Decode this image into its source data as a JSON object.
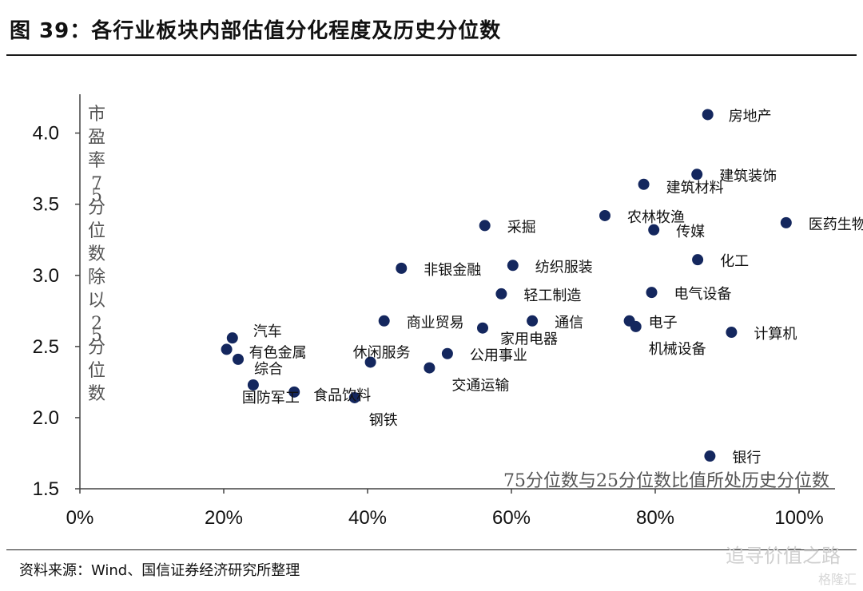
{
  "header": {
    "title": "图 39：各行业板块内部估值分化程度及历史分位数"
  },
  "footer": {
    "source": "资料来源：Wind、国信证券经济研究所整理",
    "watermark": "追寻价值之路",
    "watermark_small": "格隆汇"
  },
  "chart_data": {
    "type": "scatter",
    "xlabel": "75分位数与25分位数比值所处历史分位数",
    "ylabel": "市盈率75分位数除以25分位数",
    "xlim": [
      0,
      1.0
    ],
    "ylim": [
      1.5,
      4.2
    ],
    "xticks": [
      "0%",
      "20%",
      "40%",
      "60%",
      "80%",
      "100%"
    ],
    "yticks": [
      "1.5",
      "2.0",
      "2.5",
      "3.0",
      "3.5",
      "4.0"
    ],
    "marker_color": "#14275e",
    "points": [
      {
        "label": "房地产",
        "x": 0.873,
        "y": 4.13
      },
      {
        "label": "建筑装饰",
        "x": 0.858,
        "y": 3.71
      },
      {
        "label": "建筑材料",
        "x": 0.784,
        "y": 3.64
      },
      {
        "label": "采掘",
        "x": 0.563,
        "y": 3.35
      },
      {
        "label": "农林牧渔",
        "x": 0.73,
        "y": 3.42
      },
      {
        "label": "传媒",
        "x": 0.798,
        "y": 3.32
      },
      {
        "label": "医药生物",
        "x": 0.982,
        "y": 3.37
      },
      {
        "label": "非银金融",
        "x": 0.447,
        "y": 3.05
      },
      {
        "label": "纺织服装",
        "x": 0.602,
        "y": 3.07
      },
      {
        "label": "化工",
        "x": 0.859,
        "y": 3.11
      },
      {
        "label": "轻工制造",
        "x": 0.586,
        "y": 2.87
      },
      {
        "label": "电气设备",
        "x": 0.795,
        "y": 2.88
      },
      {
        "label": "商业贸易",
        "x": 0.423,
        "y": 2.68
      },
      {
        "label": "通信",
        "x": 0.629,
        "y": 2.68
      },
      {
        "label": "电子",
        "x": 0.764,
        "y": 2.68
      },
      {
        "label": "家用电器",
        "x": 0.56,
        "y": 2.63
      },
      {
        "label": "机械设备",
        "x": 0.773,
        "y": 2.64
      },
      {
        "label": "计算机",
        "x": 0.906,
        "y": 2.6
      },
      {
        "label": "汽车",
        "x": 0.212,
        "y": 2.56
      },
      {
        "label": "有色金属",
        "x": 0.204,
        "y": 2.48
      },
      {
        "label": "综合",
        "x": 0.22,
        "y": 2.41
      },
      {
        "label": "休闲服务",
        "x": 0.404,
        "y": 2.39
      },
      {
        "label": "公用事业",
        "x": 0.511,
        "y": 2.45
      },
      {
        "label": "交通运输",
        "x": 0.486,
        "y": 2.35
      },
      {
        "label": "国防军工",
        "x": 0.241,
        "y": 2.23
      },
      {
        "label": "食品饮料",
        "x": 0.298,
        "y": 2.18
      },
      {
        "label": "钢铁",
        "x": 0.382,
        "y": 2.14
      },
      {
        "label": "银行",
        "x": 0.876,
        "y": 1.73
      }
    ]
  }
}
